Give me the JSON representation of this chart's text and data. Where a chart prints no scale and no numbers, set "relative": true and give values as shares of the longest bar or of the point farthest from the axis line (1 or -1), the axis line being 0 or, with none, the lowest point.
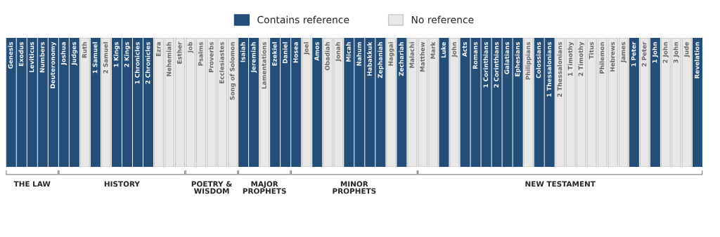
{
  "chart_data": {
    "type": "bar",
    "relative": true,
    "legend": "top",
    "categories": [
      "Genesis",
      "Exodus",
      "Leviticus",
      "Numbers",
      "Deuteronomy",
      "Joshua",
      "Judges",
      "Ruth",
      "1 Samuel",
      "2 Samuel",
      "1 Kings",
      "2 Kings",
      "1 Chronicles",
      "2 Chronicles",
      "Ezra",
      "Nehemiah",
      "Esther",
      "Job",
      "Psalms",
      "Proverbs",
      "Ecclesiastes",
      "Song of Solomon",
      "Isaiah",
      "Jeremiah",
      "Lamentations",
      "Ezekiel",
      "Daniel",
      "Hosea",
      "Joel",
      "Amos",
      "Obadiah",
      "Jonah",
      "Micah",
      "Nahum",
      "Habakkuk",
      "Zephaniah",
      "Haggai",
      "Zechariah",
      "Malachi",
      "Matthew",
      "Mark",
      "Luke",
      "John",
      "Acts",
      "Romans",
      "1 Corinthians",
      "2 Corinthians",
      "Galatians",
      "Ephesians",
      "Philippians",
      "Colossians",
      "1 Thessalonians",
      "2 Thessalonians",
      "1 Timothy",
      "2 Timothy",
      "Titus",
      "Philemon",
      "Hebrews",
      "James",
      "1 Peter",
      "2 Peter",
      "1 John",
      "2 John",
      "3 John",
      "Jude",
      "Revelation"
    ],
    "series": [
      {
        "name": "Contains reference",
        "color": "#234e79",
        "values": [
          1,
          1,
          1,
          1,
          1,
          1,
          1,
          null,
          1,
          null,
          1,
          1,
          1,
          1,
          null,
          null,
          null,
          null,
          null,
          null,
          null,
          null,
          1,
          1,
          null,
          1,
          1,
          1,
          null,
          1,
          null,
          null,
          1,
          1,
          1,
          1,
          null,
          1,
          null,
          null,
          null,
          1,
          null,
          1,
          1,
          1,
          1,
          1,
          1,
          null,
          1,
          1,
          null,
          null,
          null,
          null,
          null,
          null,
          null,
          1,
          null,
          1,
          null,
          null,
          null,
          1
        ]
      },
      {
        "name": "No reference",
        "color": "#e8e8e8",
        "values": [
          null,
          null,
          null,
          null,
          null,
          null,
          null,
          1,
          null,
          1,
          null,
          null,
          null,
          null,
          1,
          1,
          1,
          1,
          1,
          1,
          1,
          1,
          null,
          null,
          1,
          null,
          null,
          null,
          1,
          null,
          1,
          1,
          null,
          null,
          null,
          null,
          1,
          null,
          1,
          1,
          1,
          null,
          1,
          null,
          null,
          null,
          null,
          null,
          null,
          1,
          null,
          null,
          1,
          1,
          1,
          1,
          1,
          1,
          1,
          null,
          1,
          null,
          1,
          1,
          1,
          null
        ]
      }
    ],
    "annotations": [
      "THE LAW",
      "HISTORY",
      "POETRY &\nWISDOM",
      "MAJOR\nPROPHETS",
      "MINOR\nPROPHETS",
      "NEW TESTAMENT"
    ]
  }
}
